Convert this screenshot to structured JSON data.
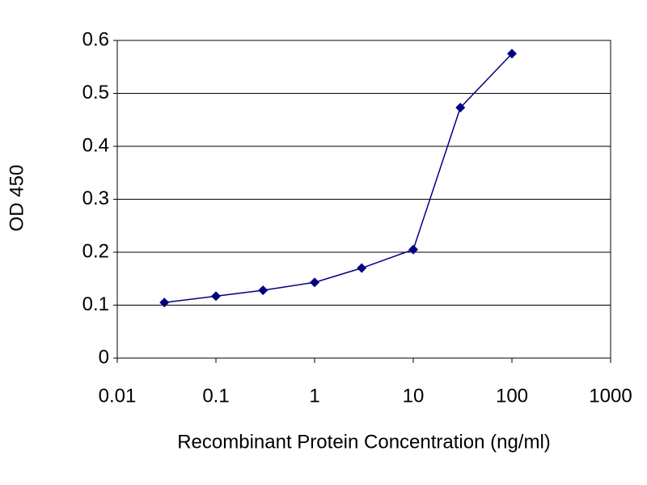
{
  "chart_data": {
    "type": "line",
    "x_label": "Recombinant Protein Concentration (ng/ml)",
    "y_label": "OD 450",
    "x_log_scale": true,
    "x": [
      0.03,
      0.1,
      0.3,
      1,
      3,
      10,
      30,
      100
    ],
    "series": [
      {
        "color": "#000080",
        "values": [
          0.105,
          0.117,
          0.128,
          0.143,
          0.17,
          0.205,
          0.473,
          0.575
        ]
      }
    ],
    "xlim": [
      0.01,
      1000
    ],
    "xticks": [
      0.01,
      0.1,
      1,
      10,
      100,
      1000
    ],
    "ylim": [
      0,
      0.6
    ],
    "yticks": [
      0,
      0.1,
      0.2,
      0.3,
      0.4,
      0.5,
      0.6
    ],
    "grid": true
  }
}
